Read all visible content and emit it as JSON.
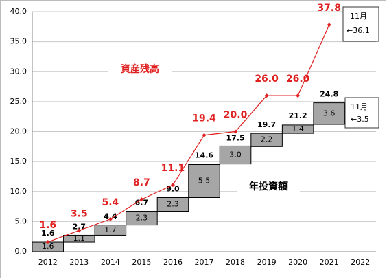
{
  "chart_data": {
    "type": "waterfall",
    "categories": [
      "2012",
      "2013",
      "2014",
      "2015",
      "2016",
      "2017",
      "2018",
      "2019",
      "2020",
      "2021",
      "2022"
    ],
    "series": [
      {
        "color": "#a6a6a6",
        "values": [
          1.6,
          1.1,
          1.7,
          2.3,
          2.3,
          5.5,
          3.0,
          2.2,
          1.4,
          3.6,
          null
        ],
        "value_labels": [
          "1.6",
          "1.1",
          "1.7",
          "2.3",
          "2.3",
          "5.5",
          "3.0",
          "2.2",
          "1.4",
          "3.6",
          null
        ]
      },
      {
        "color": "#000000",
        "values": [
          1.6,
          2.7,
          4.4,
          6.7,
          9.0,
          14.6,
          17.5,
          19.7,
          21.2,
          24.8,
          null
        ],
        "value_labels": [
          "1.6",
          "2.7",
          "4.4",
          "6.7",
          "9.0",
          "14.6",
          "17.5",
          "19.7",
          "21.2",
          "24.8",
          null
        ]
      },
      {
        "color": "#e02020",
        "values": [
          1.6,
          3.5,
          5.4,
          8.7,
          11.1,
          19.4,
          20.0,
          26.0,
          26.0,
          37.8,
          null
        ],
        "value_labels": [
          "1.6",
          "3.5",
          "5.4",
          "8.7",
          "11.1",
          "19.4",
          "20.0",
          "26.0",
          "26.0",
          "37.8",
          null
        ]
      }
    ],
    "ylim": [
      0,
      40
    ],
    "yticks": [
      {
        "value": 0,
        "label": "0.0"
      },
      {
        "value": 5,
        "label": "5.0"
      },
      {
        "value": 10,
        "label": "10.0"
      },
      {
        "value": 15,
        "label": "15.0"
      },
      {
        "value": 20,
        "label": "20.0"
      },
      {
        "value": 25,
        "label": "25.0"
      },
      {
        "value": 30,
        "label": "30.0"
      },
      {
        "value": 35,
        "label": "35.0"
      },
      {
        "value": 40,
        "label": "40.0"
      }
    ],
    "grid": true,
    "annotations": [
      "資産残高",
      "年投資額"
    ],
    "notes": [
      [
        "11月",
        "←36.1"
      ],
      [
        "11月",
        "←3.5"
      ]
    ]
  }
}
